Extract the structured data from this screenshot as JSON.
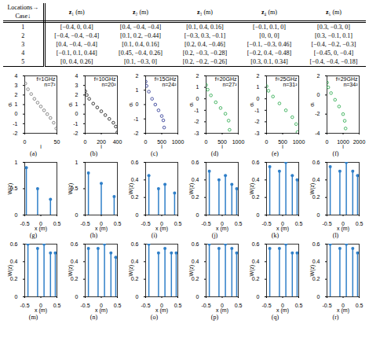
{
  "table": {
    "header": {
      "corner": [
        "Locations→",
        "Case↓"
      ],
      "columns": [
        "z₁ (m)",
        "z₂ (m)",
        "z₃ (m)",
        "z₄ (m)",
        "z₅ (m)"
      ]
    },
    "rows": [
      [
        "1",
        "[−0.4, 0, 0.4]",
        "[0.4, −0.4, −0.4]",
        "[0.1, 0.4, 0.16]",
        "[−0.1, 0.1, 0]",
        "[0.3, −0.3, 0]"
      ],
      [
        "2",
        "[−0.4, −0.4, −0.4]",
        "[0.1, 0.2, −0.44]",
        "[−0.3, 0.3, −0.1]",
        "[0, 0, 0]",
        "[0.3, −0.1, 0.1]"
      ],
      [
        "3",
        "[0.4, −0.4, −0.4]",
        "[0.1, 0.4, 0.16]",
        "[0.2, 0.4, −0.46]",
        "[−0.1, −0.3, 0.46]",
        "[−0.4, −0.2, −0.3]"
      ],
      [
        "4",
        "[−0.1, 0.1, 0.44]",
        "[0.45, −0.4, 0.26]",
        "[0.2, −0.3, −0.28]",
        "[−0.2, 0.4, −0.48]",
        "[−0.45, 0, −0.4]"
      ],
      [
        "5",
        "[0, 0.4, 0.26]",
        "[0.1, −0.3, 0]",
        "[0.2, −0.2, −0.26]",
        "[0.3, 0.1, 0.34]",
        "[−0.4, −0.4, −0.18]"
      ]
    ]
  },
  "chart_data": [
    {
      "type": "scatter",
      "caption": "(a)",
      "annotations": [
        "f=1GHz",
        "n=7²"
      ],
      "x_label": "i",
      "y_label": "σᵢ",
      "x": [
        1,
        5,
        10,
        15,
        20,
        25,
        30,
        35,
        40,
        45,
        49
      ],
      "values": [
        3.2,
        2.6,
        2.1,
        1.6,
        1.2,
        0.8,
        0.4,
        0,
        -0.4,
        -0.9,
        -1.5
      ],
      "color": "#6e6e6e",
      "marker": "circle",
      "xlim": [
        0,
        50
      ],
      "xticks": [
        0,
        50
      ],
      "ylim": [
        -2,
        4
      ],
      "yticks": [
        -2,
        -1,
        0,
        1,
        2,
        3,
        4
      ]
    },
    {
      "type": "scatter",
      "caption": "(b)",
      "annotations": [
        "f=10GHz",
        "n=20²"
      ],
      "x_label": "i",
      "y_label": "σᵢ",
      "x": [
        1,
        20,
        50,
        100,
        150,
        200,
        250,
        300,
        350,
        380,
        400
      ],
      "values": [
        2.4,
        2.0,
        1.6,
        1.1,
        0.7,
        0.3,
        -0.1,
        -0.5,
        -0.9,
        -1.3,
        -1.9
      ],
      "color": "#111111",
      "marker": "circle",
      "xlim": [
        0,
        400
      ],
      "xticks": [
        0,
        200,
        400
      ],
      "ylim": [
        -2,
        4
      ],
      "yticks": [
        -2,
        -1,
        0,
        1,
        2,
        3,
        4
      ]
    },
    {
      "type": "scatter",
      "caption": "(c)",
      "annotations": [
        "f=15GHz",
        "n=24²"
      ],
      "x_label": "i",
      "y_label": "σᵢ",
      "x": [
        1,
        30,
        100,
        200,
        300,
        400,
        500,
        550,
        576
      ],
      "values": [
        1.6,
        1.3,
        0.9,
        0.4,
        0,
        -0.4,
        -0.8,
        -1.1,
        -1.6
      ],
      "color": "#24308f",
      "marker": "circle",
      "xlim": [
        0,
        1000
      ],
      "xticks": [
        0,
        500,
        1000
      ],
      "ylim": [
        -2,
        2
      ],
      "yticks": [
        -2,
        -1,
        0,
        1,
        2
      ]
    },
    {
      "type": "scatter",
      "caption": "(d)",
      "annotations": [
        "f=20GHz",
        "n=27²"
      ],
      "x_label": "i",
      "y_label": "σᵢ",
      "x": [
        1,
        50,
        150,
        300,
        450,
        600,
        700,
        729
      ],
      "values": [
        1.2,
        0.8,
        0.3,
        -0.3,
        -0.8,
        -1.3,
        -1.9,
        -2.7
      ],
      "color": "#22a645",
      "marker": "circle",
      "xlim": [
        0,
        1000
      ],
      "xticks": [
        0,
        500,
        1000
      ],
      "ylim": [
        -3,
        2
      ],
      "yticks": [
        -3,
        -2,
        -1,
        0,
        1,
        2
      ]
    },
    {
      "type": "scatter",
      "caption": "(e)",
      "annotations": [
        "f=25GHz",
        "n=31²"
      ],
      "x_label": "i",
      "y_label": "σᵢ",
      "x": [
        1,
        60,
        200,
        400,
        600,
        800,
        920,
        961
      ],
      "values": [
        1.1,
        0.7,
        0.2,
        -0.4,
        -1.0,
        -1.6,
        -2.2,
        -2.9
      ],
      "color": "#22a645",
      "marker": "circle",
      "xlim": [
        0,
        1000
      ],
      "xticks": [
        0,
        500,
        1000
      ],
      "ylim": [
        -3,
        2
      ],
      "yticks": [
        -3,
        -2,
        -1,
        0,
        1,
        2
      ]
    },
    {
      "type": "scatter",
      "caption": "(f)",
      "annotations": [
        "f=29GHz",
        "n=34²"
      ],
      "x_label": "i",
      "y_label": "σᵢ",
      "x": [
        1,
        80,
        250,
        500,
        750,
        1000,
        1100,
        1156
      ],
      "values": [
        1.3,
        0.8,
        0.2,
        -0.5,
        -1.2,
        -2.0,
        -2.7,
        -3.5
      ],
      "color": "#22a645",
      "marker": "circle",
      "xlim": [
        0,
        2000
      ],
      "xticks": [
        0,
        1000,
        2000
      ],
      "ylim": [
        -4,
        2
      ],
      "yticks": [
        -4,
        -2,
        0,
        2
      ]
    },
    {
      "type": "stem",
      "caption": "(g)",
      "x_label": "x (m)",
      "y_label": "W(z)",
      "x": [
        -0.45,
        -0.1,
        0.3
      ],
      "values": [
        0.9,
        0.5,
        0.3
      ],
      "color": "#2f7fc8",
      "marker": "dot",
      "xlim": [
        -0.5,
        0.5
      ],
      "xticks": [
        -0.5,
        0,
        0.5
      ],
      "ylim": [
        0,
        1
      ],
      "yticks": [
        0,
        0.5,
        1
      ]
    },
    {
      "type": "stem",
      "caption": "(h)",
      "x_label": "x (m)",
      "y_label": "W(z)",
      "x": [
        -0.4,
        0,
        0.4
      ],
      "values": [
        0.8,
        0.6,
        0.35
      ],
      "color": "#2f7fc8",
      "marker": "dot",
      "xlim": [
        -0.5,
        0.5
      ],
      "xticks": [
        -0.5,
        0,
        0.5
      ],
      "ylim": [
        0,
        1
      ],
      "yticks": [
        0,
        0.5,
        1
      ]
    },
    {
      "type": "stem",
      "caption": "(i)",
      "x_label": "x (m)",
      "y_label": "W(z)",
      "x": [
        -0.4,
        -0.1,
        0.1,
        0.4
      ],
      "values": [
        0.45,
        0.3,
        0.35,
        0.25
      ],
      "color": "#2f7fc8",
      "marker": "dot",
      "xlim": [
        -0.5,
        0.5
      ],
      "xticks": [
        -0.5,
        0,
        0.5
      ],
      "ylim": [
        0,
        0.6
      ],
      "yticks": [
        0,
        0.2,
        0.4,
        0.6
      ]
    },
    {
      "type": "stem",
      "caption": "(j)",
      "x_label": "x (m)",
      "y_label": "W(z)",
      "x": [
        -0.4,
        -0.1,
        0.1,
        0.3,
        0.45
      ],
      "values": [
        0.5,
        0.4,
        0.45,
        0.35,
        0.3
      ],
      "color": "#2f7fc8",
      "marker": "dot",
      "xlim": [
        -0.5,
        0.5
      ],
      "xticks": [
        -0.5,
        0,
        0.5
      ],
      "ylim": [
        0,
        0.6
      ],
      "yticks": [
        0,
        0.2,
        0.4,
        0.6
      ]
    },
    {
      "type": "stem",
      "caption": "(k)",
      "x_label": "x (m)",
      "y_label": "W(z)",
      "x": [
        -0.4,
        -0.1,
        0.1,
        0.3,
        0.45
      ],
      "values": [
        0.55,
        0.5,
        0.6,
        0.45,
        0.4
      ],
      "color": "#2f7fc8",
      "marker": "dot",
      "xlim": [
        -0.5,
        0.5
      ],
      "xticks": [
        -0.5,
        0,
        0.5
      ],
      "ylim": [
        0,
        0.6
      ],
      "yticks": [
        0,
        0.2,
        0.4,
        0.6
      ]
    },
    {
      "type": "stem",
      "caption": "(l)",
      "x_label": "x (m)",
      "y_label": "W(z)",
      "x": [
        -0.4,
        -0.1,
        0.1,
        0.3,
        0.45
      ],
      "values": [
        0.55,
        0.5,
        0.6,
        0.5,
        0.45
      ],
      "color": "#2f7fc8",
      "marker": "dot",
      "xlim": [
        -0.5,
        0.5
      ],
      "xticks": [
        -0.5,
        0,
        0.5
      ],
      "ylim": [
        0,
        0.6
      ],
      "yticks": [
        0,
        0.2,
        0.4,
        0.6
      ]
    },
    {
      "type": "stem",
      "caption": "(m)",
      "x_label": "x (m)",
      "y_label": "W(z)",
      "x": [
        -0.4,
        -0.1,
        0.1,
        0.3,
        0.45
      ],
      "values": [
        0.6,
        0.55,
        0.6,
        0.5,
        0.5
      ],
      "color": "#2f7fc8",
      "marker": "dot",
      "xlim": [
        -0.5,
        0.5
      ],
      "xticks": [
        -0.5,
        0,
        0.5
      ],
      "ylim": [
        0,
        0.6
      ],
      "yticks": [
        0,
        0.2,
        0.4,
        0.6
      ]
    },
    {
      "type": "stem",
      "caption": "(n)",
      "x_label": "x (m)",
      "y_label": "W(z)",
      "x": [
        -0.4,
        -0.1,
        0.1,
        0.3,
        0.45
      ],
      "values": [
        0.55,
        0.55,
        0.6,
        0.5,
        0.45
      ],
      "color": "#2f7fc8",
      "marker": "dot",
      "xlim": [
        -0.5,
        0.5
      ],
      "xticks": [
        -0.5,
        0,
        0.5
      ],
      "ylim": [
        0,
        0.6
      ],
      "yticks": [
        0,
        0.2,
        0.4,
        0.6
      ]
    },
    {
      "type": "stem",
      "caption": "(o)",
      "x_label": "x (m)",
      "y_label": "W(z)",
      "x": [
        -0.4,
        -0.1,
        0.1,
        0.3,
        0.45
      ],
      "values": [
        0.6,
        0.5,
        0.55,
        0.5,
        0.5
      ],
      "color": "#2f7fc8",
      "marker": "dot",
      "xlim": [
        -0.5,
        0.5
      ],
      "xticks": [
        -0.5,
        0,
        0.5
      ],
      "ylim": [
        0,
        0.6
      ],
      "yticks": [
        0,
        0.2,
        0.4,
        0.6
      ]
    },
    {
      "type": "stem",
      "caption": "(p)",
      "x_label": "x (m)",
      "y_label": "W(z)",
      "x": [
        -0.4,
        -0.1,
        0.1,
        0.3,
        0.45
      ],
      "values": [
        0.6,
        0.55,
        0.6,
        0.55,
        0.5
      ],
      "color": "#2f7fc8",
      "marker": "dot",
      "xlim": [
        -0.5,
        0.5
      ],
      "xticks": [
        -0.5,
        0,
        0.5
      ],
      "ylim": [
        0,
        0.6
      ],
      "yticks": [
        0,
        0.2,
        0.4,
        0.6
      ]
    },
    {
      "type": "stem",
      "caption": "(q)",
      "x_label": "x (m)",
      "y_label": "W(z)",
      "x": [
        -0.4,
        -0.1,
        0.1,
        0.3,
        0.45
      ],
      "values": [
        0.55,
        0.55,
        0.6,
        0.5,
        0.5
      ],
      "color": "#2f7fc8",
      "marker": "dot",
      "xlim": [
        -0.5,
        0.5
      ],
      "xticks": [
        -0.5,
        0,
        0.5
      ],
      "ylim": [
        0,
        0.6
      ],
      "yticks": [
        0,
        0.2,
        0.4,
        0.6
      ]
    },
    {
      "type": "stem",
      "caption": "(r)",
      "x_label": "x (m)",
      "y_label": "W(z)",
      "x": [
        -0.4,
        -0.1,
        0.1,
        0.3,
        0.45
      ],
      "values": [
        0.6,
        0.55,
        0.6,
        0.55,
        0.5
      ],
      "color": "#2f7fc8",
      "marker": "dot",
      "xlim": [
        -0.5,
        0.5
      ],
      "xticks": [
        -0.5,
        0,
        0.5
      ],
      "ylim": [
        0,
        0.6
      ],
      "yticks": [
        0,
        0.2,
        0.4,
        0.6
      ]
    }
  ]
}
